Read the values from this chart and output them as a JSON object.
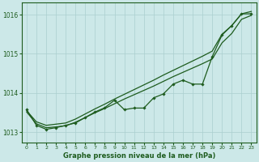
{
  "background_color": "#cce8e8",
  "plot_bg_color": "#cce8e8",
  "grid_color": "#aacfcf",
  "line_color": "#1e5c1e",
  "xlabel": "Graphe pression niveau de la mer (hPa)",
  "ylim": [
    1012.75,
    1016.3
  ],
  "xlim": [
    -0.5,
    23.5
  ],
  "yticks": [
    1013,
    1014,
    1015,
    1016
  ],
  "xticks": [
    0,
    1,
    2,
    3,
    4,
    5,
    6,
    7,
    8,
    9,
    10,
    11,
    12,
    13,
    14,
    15,
    16,
    17,
    18,
    19,
    20,
    21,
    22,
    23
  ],
  "line_upper": [
    1013.55,
    1013.27,
    1013.18,
    1013.21,
    1013.24,
    1013.34,
    1013.47,
    1013.6,
    1013.72,
    1013.85,
    1013.97,
    1014.09,
    1014.21,
    1014.33,
    1014.46,
    1014.58,
    1014.7,
    1014.82,
    1014.94,
    1015.07,
    1015.5,
    1015.72,
    1016.02,
    1016.08
  ],
  "line_lower": [
    1013.52,
    1013.22,
    1013.12,
    1013.14,
    1013.17,
    1013.26,
    1013.38,
    1013.5,
    1013.61,
    1013.73,
    1013.85,
    1013.96,
    1014.07,
    1014.18,
    1014.3,
    1014.42,
    1014.53,
    1014.64,
    1014.75,
    1014.87,
    1015.28,
    1015.52,
    1015.88,
    1015.98
  ],
  "main_line": [
    1013.58,
    1013.18,
    1013.08,
    1013.12,
    1013.18,
    1013.24,
    1013.38,
    1013.52,
    1013.63,
    1013.82,
    1013.58,
    1013.62,
    1013.62,
    1013.88,
    1013.98,
    1014.23,
    1014.33,
    1014.23,
    1014.23,
    1014.93,
    1015.48,
    1015.72,
    1016.02,
    1016.02
  ]
}
